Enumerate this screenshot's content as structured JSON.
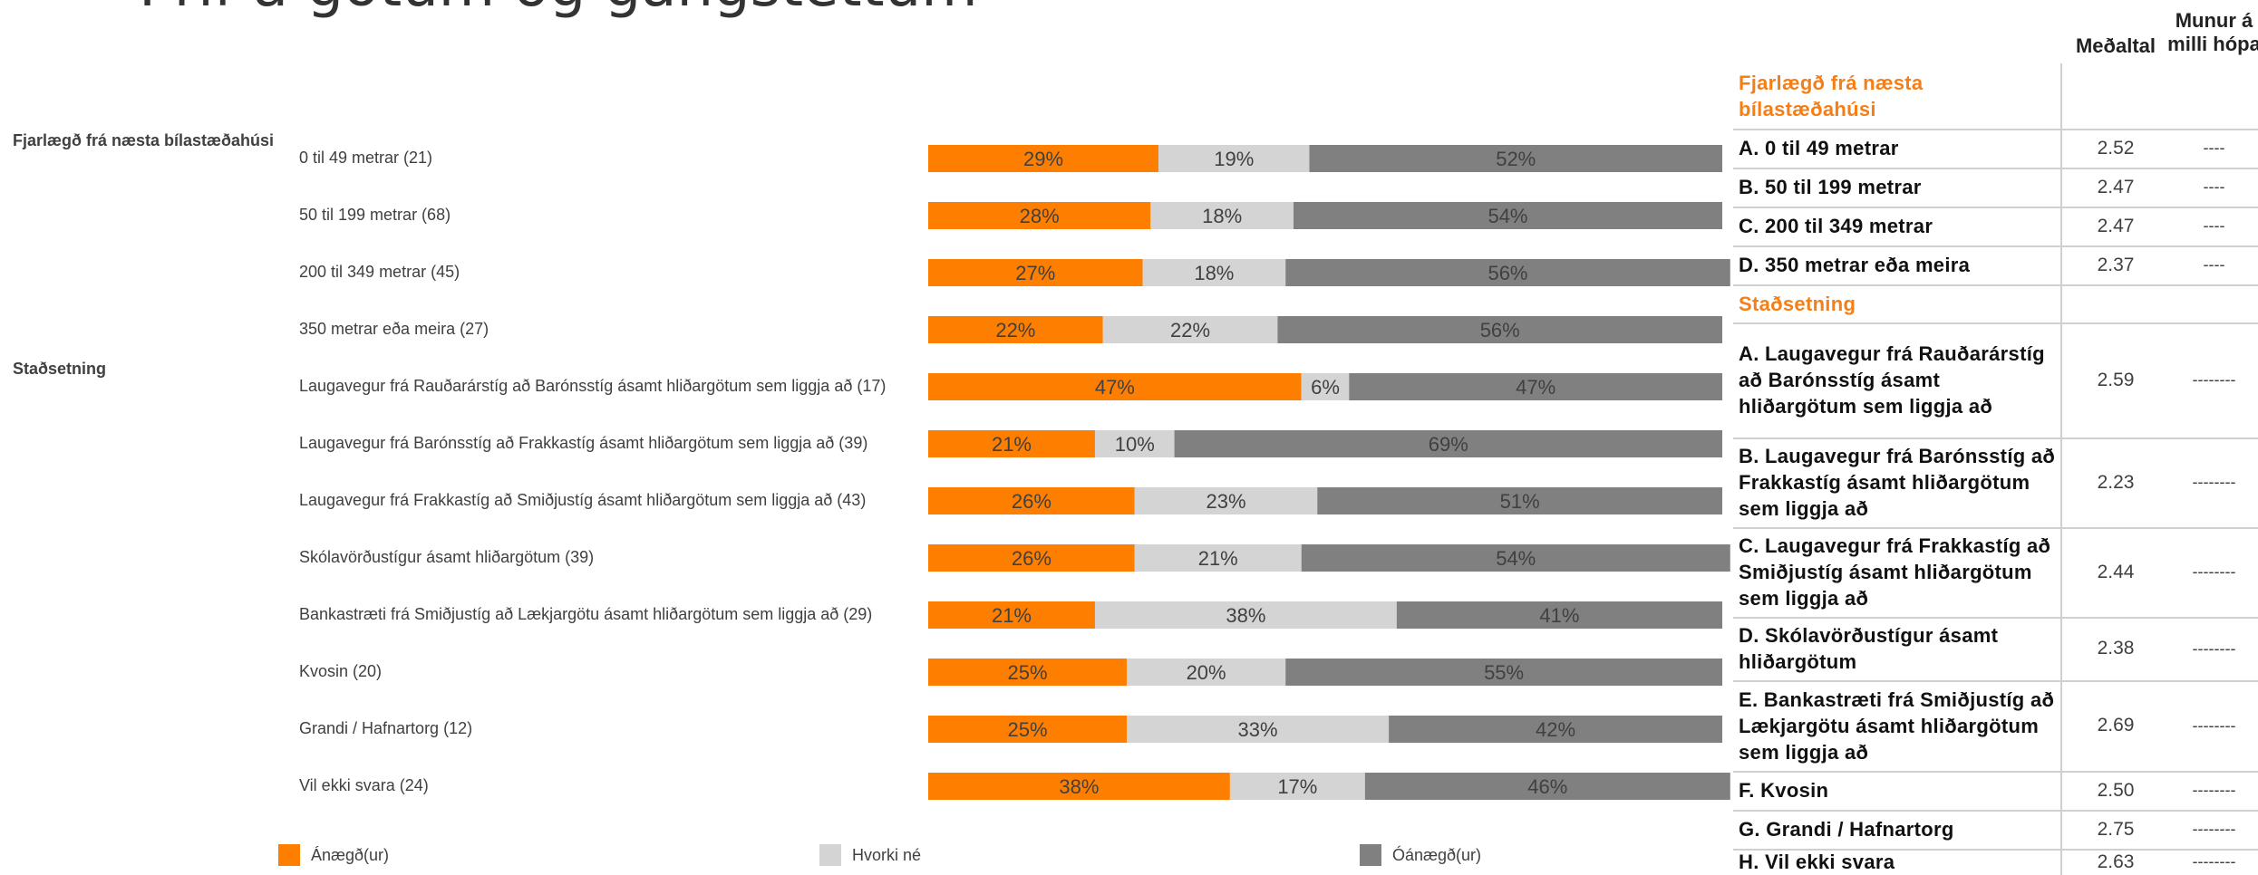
{
  "title": "-Þrif á götum og gangstéttum",
  "groups": [
    {
      "label": "Fjarlægð frá næsta bílastæðahúsi"
    },
    {
      "label": "Staðsetning"
    }
  ],
  "legend": [
    {
      "label": "Ánægð(ur)",
      "color": "#fe7f00"
    },
    {
      "label": "Hvorki né",
      "color": "#d4d4d4"
    },
    {
      "label": "Óánægð(ur)",
      "color": "#808080"
    }
  ],
  "chart_data": {
    "type": "bar",
    "orientation": "horizontal",
    "stacked": true,
    "categories": [
      "0 til 49 metrar (21)",
      "50 til 199 metrar (68)",
      "200 til 349 metrar (45)",
      "350 metrar eða meira (27)",
      "Laugavegur frá Rauðarárstíg að Barónsstíg ásamt hliðargötum sem liggja að (17)",
      "Laugavegur frá Barónsstíg að Frakkastíg ásamt hliðargötum sem liggja að (39)",
      "Laugavegur frá Frakkastíg að Smiðjustíg ásamt hliðargötum sem liggja að (43)",
      "Skólavörðustígur ásamt hliðargötum (39)",
      "Bankastræti frá Smiðjustíg að Lækjargötu ásamt hliðargötum sem liggja að (29)",
      "Kvosin (20)",
      "Grandi / Hafnartorg (12)",
      "Vil ekki svara (24)"
    ],
    "series": [
      {
        "name": "Ánægð(ur)",
        "values": [
          29,
          28,
          27,
          22,
          47,
          21,
          26,
          26,
          21,
          25,
          25,
          38
        ]
      },
      {
        "name": "Hvorki né",
        "values": [
          19,
          18,
          18,
          22,
          6,
          10,
          23,
          21,
          38,
          20,
          33,
          17
        ]
      },
      {
        "name": "Óánægð(ur)",
        "values": [
          52,
          54,
          56,
          56,
          47,
          69,
          51,
          54,
          41,
          55,
          42,
          46
        ]
      }
    ],
    "xlim": [
      0,
      100
    ],
    "unit": "%"
  },
  "table": {
    "headers": {
      "mean": "Meðaltal",
      "diff": "Munur á milli hópa"
    },
    "rows": [
      {
        "kind": "section",
        "label": "Fjarlægð frá næsta bílastæðahúsi",
        "mean": "",
        "diff": ""
      },
      {
        "kind": "item",
        "label": "A. 0 til 49 metrar",
        "mean": "2.52",
        "diff": "----"
      },
      {
        "kind": "item",
        "label": "B. 50 til 199 metrar",
        "mean": "2.47",
        "diff": "----"
      },
      {
        "kind": "item",
        "label": "C. 200 til 349 metrar",
        "mean": "2.47",
        "diff": "----"
      },
      {
        "kind": "item",
        "label": "D. 350 metrar eða meira",
        "mean": "2.37",
        "diff": "----"
      },
      {
        "kind": "section",
        "label": "Staðsetning",
        "mean": "",
        "diff": ""
      },
      {
        "kind": "item",
        "label": "A. Laugavegur frá Rauðarárstíg að Barónsstíg ásamt hliðargötum sem liggja að",
        "mean": "2.59",
        "diff": "--------"
      },
      {
        "kind": "item",
        "label": "B. Laugavegur frá Barónsstíg að Frakkastíg ásamt hliðargötum sem liggja að",
        "mean": "2.23",
        "diff": "--------"
      },
      {
        "kind": "item",
        "label": "C. Laugavegur frá Frakkastíg að Smiðjustíg ásamt hliðargötum sem liggja að",
        "mean": "2.44",
        "diff": "--------"
      },
      {
        "kind": "item",
        "label": "D. Skólavörðustígur ásamt hliðargötum",
        "mean": "2.38",
        "diff": "--------"
      },
      {
        "kind": "item",
        "label": "E. Bankastræti frá Smiðjustíg að Lækjargötu ásamt hliðargötum sem liggja að",
        "mean": "2.69",
        "diff": "--------"
      },
      {
        "kind": "item",
        "label": "F. Kvosin",
        "mean": "2.50",
        "diff": "--------"
      },
      {
        "kind": "item",
        "label": "G. Grandi / Hafnartorg",
        "mean": "2.75",
        "diff": "--------"
      },
      {
        "kind": "item",
        "label": "H. Vil ekki svara",
        "mean": "2.63",
        "diff": "--------"
      }
    ]
  }
}
